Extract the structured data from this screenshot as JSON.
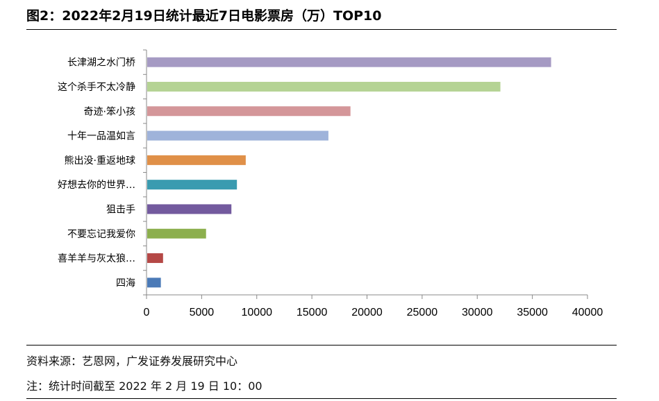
{
  "figure": {
    "title": "图2：2022年2月19日统计最近7日电影票房（万）TOP10",
    "source": "资料来源：艺恩网，广发证券发展研究中心",
    "note": "注：统计时间截至 2022 年 2 月 19 日 10：00"
  },
  "chart_data": {
    "type": "bar",
    "orientation": "horizontal",
    "title": "",
    "xlabel": "",
    "ylabel": "",
    "xlim": [
      0,
      40000
    ],
    "xticks": [
      0,
      5000,
      10000,
      15000,
      20000,
      25000,
      30000,
      35000,
      40000
    ],
    "grid": false,
    "legend": "none",
    "categories": [
      "长津湖之水门桥",
      "这个杀手不太冷静",
      "奇迹·笨小孩",
      "十年一品温如言",
      "熊出没·重返地球",
      "好想去你的世界…",
      "狙击手",
      "不要忘记我爱你",
      "喜羊羊与灰太狼…",
      "四海"
    ],
    "values": [
      36700,
      32100,
      18500,
      16500,
      9000,
      8200,
      7700,
      5400,
      1500,
      1300
    ],
    "colors": [
      "#a59ac3",
      "#b5d394",
      "#d49699",
      "#9fb3da",
      "#e09048",
      "#3a9bb0",
      "#735a9e",
      "#8caf4d",
      "#b54846",
      "#4b7ab7"
    ]
  }
}
